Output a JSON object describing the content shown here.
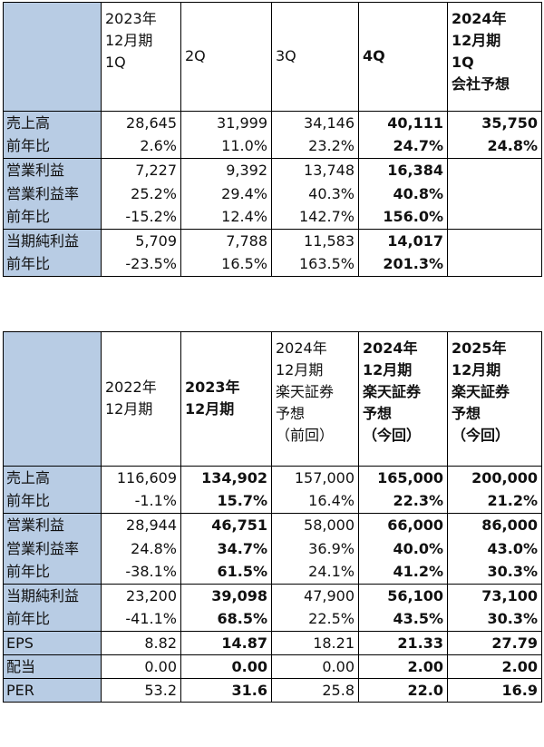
{
  "table1": {
    "headers": [
      {
        "lines": [
          "2023年",
          "12月期",
          "1Q"
        ],
        "bold": false
      },
      {
        "lines": [
          "2Q"
        ],
        "bold": false
      },
      {
        "lines": [
          "3Q"
        ],
        "bold": false
      },
      {
        "lines": [
          "4Q"
        ],
        "bold": true
      },
      {
        "lines": [
          "2024年",
          "12月期",
          "1Q",
          "会社予想"
        ],
        "bold": true
      }
    ],
    "rows": [
      {
        "label": "売上高",
        "values": [
          "28,645",
          "31,999",
          "34,146",
          "40,111",
          "35,750"
        ]
      },
      {
        "label": "前年比",
        "values": [
          "2.6%",
          "11.0%",
          "23.2%",
          "24.7%",
          "24.8%"
        ]
      },
      {
        "label": "営業利益",
        "values": [
          "7,227",
          "9,392",
          "13,748",
          "16,384",
          ""
        ]
      },
      {
        "label": "営業利益率",
        "values": [
          "25.2%",
          "29.4%",
          "40.3%",
          "40.8%",
          ""
        ]
      },
      {
        "label": "前年比",
        "values": [
          "-15.2%",
          "12.4%",
          "142.7%",
          "156.0%",
          ""
        ]
      },
      {
        "label": "当期純利益",
        "values": [
          "5,709",
          "7,788",
          "11,583",
          "14,017",
          ""
        ]
      },
      {
        "label": "前年比",
        "values": [
          "-23.5%",
          "16.5%",
          "163.5%",
          "201.3%",
          ""
        ]
      }
    ]
  },
  "table2": {
    "headers": [
      {
        "lines": [
          "2022年",
          "12月期"
        ],
        "bold": false
      },
      {
        "lines": [
          "2023年",
          "12月期"
        ],
        "bold": true
      },
      {
        "lines": [
          "2024年",
          "12月期",
          "楽天証券",
          "予想",
          "（前回）"
        ],
        "bold": false
      },
      {
        "lines": [
          "2024年",
          "12月期",
          "楽天証券",
          "予想",
          "（今回）"
        ],
        "bold": true
      },
      {
        "lines": [
          "2025年",
          "12月期",
          "楽天証券",
          "予想",
          "（今回）"
        ],
        "bold": true
      }
    ],
    "rows": [
      {
        "label": "売上高",
        "values": [
          "116,609",
          "134,902",
          "157,000",
          "165,000",
          "200,000"
        ]
      },
      {
        "label": "前年比",
        "values": [
          "-1.1%",
          "15.7%",
          "16.4%",
          "22.3%",
          "21.2%"
        ]
      },
      {
        "label": "営業利益",
        "values": [
          "28,944",
          "46,751",
          "58,000",
          "66,000",
          "86,000"
        ]
      },
      {
        "label": "営業利益率",
        "values": [
          "24.8%",
          "34.7%",
          "36.9%",
          "40.0%",
          "43.0%"
        ]
      },
      {
        "label": "前年比",
        "values": [
          "-38.1%",
          "61.5%",
          "24.1%",
          "41.2%",
          "30.3%"
        ]
      },
      {
        "label": "当期純利益",
        "values": [
          "23,200",
          "39,098",
          "47,900",
          "56,100",
          "73,100"
        ]
      },
      {
        "label": "前年比",
        "values": [
          "-41.1%",
          "68.5%",
          "22.5%",
          "43.5%",
          "30.3%"
        ]
      },
      {
        "label": "EPS",
        "values": [
          "8.82",
          "14.87",
          "18.21",
          "21.33",
          "27.79"
        ]
      },
      {
        "label": "配当",
        "values": [
          "0.00",
          "0.00",
          "0.00",
          "2.00",
          "2.00"
        ]
      },
      {
        "label": "PER",
        "values": [
          "53.2",
          "31.6",
          "25.8",
          "22.0",
          "16.9"
        ]
      }
    ]
  },
  "colors": {
    "label_bg": "#b8cce4",
    "border": "#000000"
  }
}
